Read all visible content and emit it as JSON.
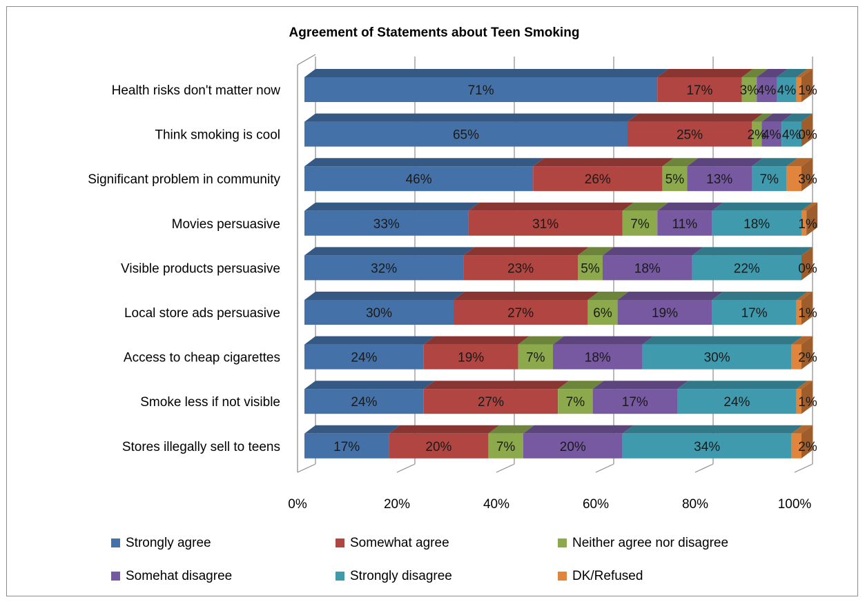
{
  "chart_data": {
    "type": "bar",
    "orientation": "horizontal",
    "stacked": "100%",
    "three_d": true,
    "title": "Agreement of Statements about Teen Smoking",
    "categories": [
      "Health risks don't matter now",
      "Think smoking is cool",
      "Significant problem in community",
      "Movies persuasive",
      "Visible products persuasive",
      "Local store ads persuasive",
      "Access to cheap cigarettes",
      "Smoke less if not visible",
      "Stores illegally sell to teens"
    ],
    "series": [
      {
        "name": "Strongly agree",
        "color": "#4472a8",
        "values": [
          71,
          65,
          46,
          33,
          32,
          30,
          24,
          24,
          17
        ]
      },
      {
        "name": "Somewhat agree",
        "color": "#b04541",
        "values": [
          17,
          25,
          26,
          31,
          23,
          27,
          19,
          27,
          20
        ]
      },
      {
        "name": "Neither agree nor disagree",
        "color": "#8ca94c",
        "values": [
          3,
          2,
          5,
          7,
          5,
          6,
          7,
          7,
          7
        ]
      },
      {
        "name": "Somehat disagree",
        "color": "#7659a0",
        "values": [
          4,
          4,
          13,
          11,
          18,
          19,
          18,
          17,
          20
        ]
      },
      {
        "name": "Strongly disagree",
        "color": "#3f9aae",
        "values": [
          4,
          4,
          7,
          18,
          22,
          17,
          30,
          24,
          34
        ]
      },
      {
        "name": "DK/Refused",
        "color": "#e2853c",
        "values": [
          1,
          0,
          3,
          1,
          0,
          1,
          2,
          1,
          2
        ]
      }
    ],
    "value_labels": [
      [
        "71%",
        "17%",
        "3%",
        "4%",
        "4%",
        "1%"
      ],
      [
        "65%",
        "25%",
        "2%",
        "4%",
        "4%",
        "0%"
      ],
      [
        "46%",
        "26%",
        "5%",
        "13%",
        "7%",
        "3%"
      ],
      [
        "33%",
        "31%",
        "7%",
        "11%",
        "18%",
        "1%"
      ],
      [
        "32%",
        "23%",
        "5%",
        "18%",
        "22%",
        "0%"
      ],
      [
        "30%",
        "27%",
        "6%",
        "19%",
        "17%",
        "1%"
      ],
      [
        "24%",
        "19%",
        "7%",
        "18%",
        "30%",
        "2%"
      ],
      [
        "24%",
        "27%",
        "7%",
        "17%",
        "24%",
        "1%"
      ],
      [
        "17%",
        "20%",
        "7%",
        "20%",
        "34%",
        "2%"
      ]
    ],
    "x_ticks": [
      "0%",
      "20%",
      "40%",
      "60%",
      "80%",
      "100%"
    ],
    "xlim": [
      0,
      100
    ],
    "grid": true,
    "legend_position": "bottom"
  }
}
